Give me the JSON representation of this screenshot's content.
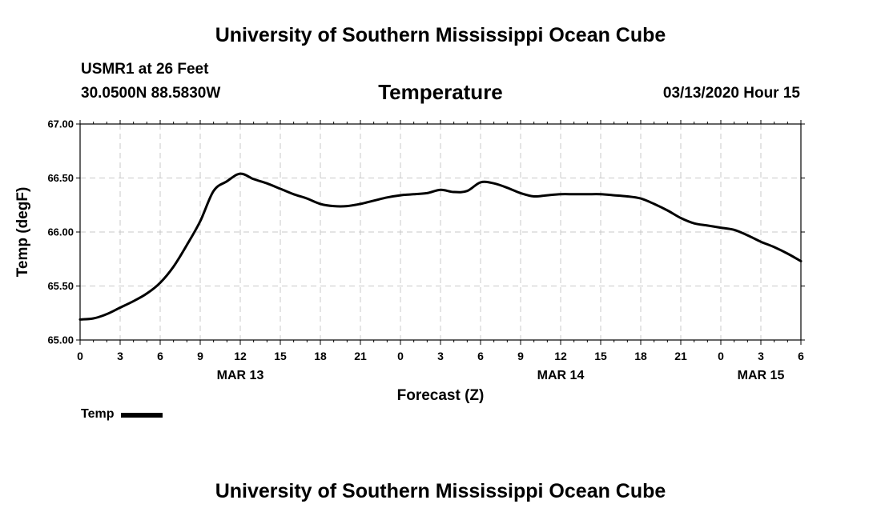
{
  "header": {
    "title": "University of Southern Mississippi Ocean Cube",
    "station": "USMR1 at 26 Feet",
    "coordinates": "30.0500N 88.5830W",
    "datetime": "03/13/2020 Hour 15"
  },
  "footer": {
    "title": "University of Southern Mississippi Ocean Cube"
  },
  "chart_data": {
    "type": "line",
    "title": "Temperature",
    "xlabel": "Forecast (Z)",
    "ylabel": "Temp (degF)",
    "x_unit": "hours from MAR 13 00Z",
    "xlim": [
      0,
      54
    ],
    "ylim": [
      65.0,
      67.0
    ],
    "grid": true,
    "legend_position": "bottom-left",
    "y_ticks": [
      "65.00",
      "65.50",
      "66.00",
      "66.50",
      "67.00"
    ],
    "x_ticks": [
      {
        "x": 0,
        "label": "0"
      },
      {
        "x": 3,
        "label": "3"
      },
      {
        "x": 6,
        "label": "6"
      },
      {
        "x": 9,
        "label": "9"
      },
      {
        "x": 12,
        "label": "12"
      },
      {
        "x": 15,
        "label": "15"
      },
      {
        "x": 18,
        "label": "18"
      },
      {
        "x": 21,
        "label": "21"
      },
      {
        "x": 24,
        "label": "0"
      },
      {
        "x": 27,
        "label": "3"
      },
      {
        "x": 30,
        "label": "6"
      },
      {
        "x": 33,
        "label": "9"
      },
      {
        "x": 36,
        "label": "12"
      },
      {
        "x": 39,
        "label": "15"
      },
      {
        "x": 42,
        "label": "18"
      },
      {
        "x": 45,
        "label": "21"
      },
      {
        "x": 48,
        "label": "0"
      },
      {
        "x": 51,
        "label": "3"
      },
      {
        "x": 54,
        "label": "6"
      }
    ],
    "date_labels": [
      {
        "x": 12,
        "label": "MAR 13"
      },
      {
        "x": 36,
        "label": "MAR 14"
      },
      {
        "x": 51,
        "label": "MAR 15"
      }
    ],
    "series": [
      {
        "name": "Temp",
        "color": "#000000",
        "x": [
          0,
          1,
          2,
          3,
          4,
          5,
          6,
          7,
          8,
          9,
          10,
          11,
          12,
          13,
          14,
          15,
          16,
          17,
          18,
          19,
          20,
          21,
          22,
          23,
          24,
          25,
          26,
          27,
          28,
          29,
          30,
          31,
          32,
          33,
          34,
          35,
          36,
          37,
          38,
          39,
          40,
          41,
          42,
          43,
          44,
          45,
          46,
          47,
          48,
          49,
          50,
          51,
          52,
          53,
          54
        ],
        "y": [
          65.19,
          65.2,
          65.24,
          65.3,
          65.36,
          65.43,
          65.53,
          65.68,
          65.88,
          66.1,
          66.38,
          66.47,
          66.54,
          66.49,
          66.45,
          66.4,
          66.35,
          66.31,
          66.26,
          66.24,
          66.24,
          66.26,
          66.29,
          66.32,
          66.34,
          66.35,
          66.36,
          66.39,
          66.37,
          66.38,
          66.46,
          66.45,
          66.41,
          66.36,
          66.33,
          66.34,
          66.35,
          66.35,
          66.35,
          66.35,
          66.34,
          66.33,
          66.31,
          66.26,
          66.2,
          66.13,
          66.08,
          66.06,
          66.04,
          66.02,
          65.97,
          65.91,
          65.86,
          65.8,
          65.73
        ]
      }
    ]
  }
}
